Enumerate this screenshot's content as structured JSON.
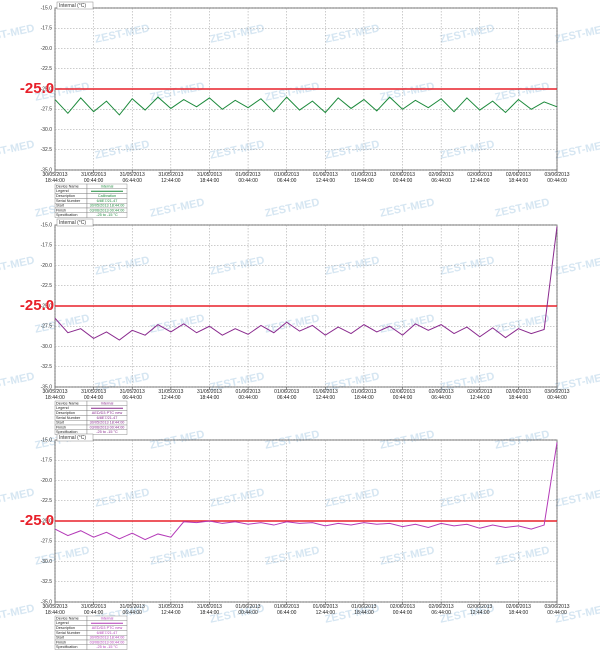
{
  "watermark": "ZEST-MED",
  "chart_data": [
    {
      "type": "line",
      "title": "Internal (°C)",
      "x": [
        0,
        2,
        4,
        6,
        8,
        10,
        12,
        14,
        16,
        18,
        20,
        22,
        24,
        26,
        28,
        30,
        32,
        34,
        36,
        38,
        40,
        42,
        44,
        46,
        48,
        50,
        52,
        54,
        56,
        58,
        60,
        62,
        64,
        66,
        68,
        70,
        72,
        74,
        76,
        78
      ],
      "xlim": [
        0,
        78
      ],
      "xticks": [
        {
          "value": 0,
          "label": "30/05/2013 18:44:00"
        },
        {
          "value": 6,
          "label": "31/05/2013 00:44:00"
        },
        {
          "value": 12,
          "label": "31/05/2013 06:44:00"
        },
        {
          "value": 18,
          "label": "31/05/2013 12:44:00"
        },
        {
          "value": 24,
          "label": "31/05/2013 18:44:00"
        },
        {
          "value": 30,
          "label": "01/06/2013 00:44:00"
        },
        {
          "value": 36,
          "label": "01/06/2013 06:44:00"
        },
        {
          "value": 42,
          "label": "01/06/2013 12:44:00"
        },
        {
          "value": 48,
          "label": "01/06/2013 18:44:00"
        },
        {
          "value": 54,
          "label": "02/06/2013 00:44:00"
        },
        {
          "value": 60,
          "label": "02/06/2013 06:44:00"
        },
        {
          "value": 66,
          "label": "02/06/2013 12:44:00"
        },
        {
          "value": 72,
          "label": "02/06/2013 18:44:00"
        },
        {
          "value": 78,
          "label": "03/06/2013 00:44:00"
        }
      ],
      "ylim": [
        -35,
        -15
      ],
      "yticks": [
        {
          "value": -35,
          "label": "-35.0"
        },
        {
          "value": -32.5,
          "label": "-32.5"
        },
        {
          "value": -30,
          "label": "-30.0"
        },
        {
          "value": -27.5,
          "label": "-27.5"
        },
        {
          "value": -25,
          "label": "-25.0"
        },
        {
          "value": -22.5,
          "label": "-22.5"
        },
        {
          "value": -20,
          "label": "-20.0"
        },
        {
          "value": -17.5,
          "label": "-17.5"
        },
        {
          "value": -15,
          "label": "-15.0"
        }
      ],
      "grid": true,
      "threshold": {
        "value": -25,
        "label": "-25.0",
        "color": "#e8202a"
      },
      "series": [
        {
          "name": "Internal",
          "color": "#1d8a3c",
          "values": [
            -26.3,
            -28.0,
            -26.1,
            -27.8,
            -26.5,
            -28.2,
            -26.2,
            -27.6,
            -26.0,
            -27.4,
            -26.3,
            -27.2,
            -26.1,
            -27.5,
            -26.4,
            -27.3,
            -26.2,
            -27.8,
            -26.0,
            -27.6,
            -26.5,
            -27.9,
            -26.1,
            -27.4,
            -26.3,
            -27.7,
            -26.0,
            -27.5,
            -26.4,
            -27.3,
            -26.2,
            -27.8,
            -26.1,
            -27.6,
            -26.5,
            -27.9,
            -26.3,
            -27.5,
            -26.6,
            -27.2
          ]
        }
      ],
      "info": [
        {
          "label": "Device Name",
          "value": "Internal"
        },
        {
          "label": "Legend"
        },
        {
          "label": "Description",
          "value": "Calibration"
        },
        {
          "label": "Serial Number",
          "value": "6/8E7/21-47"
        },
        {
          "label": "Start",
          "value": "30/05/2013 18:44:00"
        },
        {
          "label": "Finish",
          "value": "03/06/2013 00:44:00"
        },
        {
          "label": "Specification",
          "value": "-25 to -15 °C"
        }
      ]
    },
    {
      "type": "line",
      "title": "Internal (°C)",
      "x": [
        0,
        2,
        4,
        6,
        8,
        10,
        12,
        14,
        16,
        18,
        20,
        22,
        24,
        26,
        28,
        30,
        32,
        34,
        36,
        38,
        40,
        42,
        44,
        46,
        48,
        50,
        52,
        54,
        56,
        58,
        60,
        62,
        64,
        66,
        68,
        70,
        72,
        74,
        76,
        78
      ],
      "xlim": [
        0,
        78
      ],
      "xticks": [
        {
          "value": 0,
          "label": "30/05/2013 18:44:00"
        },
        {
          "value": 6,
          "label": "31/05/2013 00:44:00"
        },
        {
          "value": 12,
          "label": "31/05/2013 06:44:00"
        },
        {
          "value": 18,
          "label": "31/05/2013 12:44:00"
        },
        {
          "value": 24,
          "label": "31/05/2013 18:44:00"
        },
        {
          "value": 30,
          "label": "01/06/2013 00:44:00"
        },
        {
          "value": 36,
          "label": "01/06/2013 06:44:00"
        },
        {
          "value": 42,
          "label": "01/06/2013 12:44:00"
        },
        {
          "value": 48,
          "label": "01/06/2013 18:44:00"
        },
        {
          "value": 54,
          "label": "02/06/2013 00:44:00"
        },
        {
          "value": 60,
          "label": "02/06/2013 06:44:00"
        },
        {
          "value": 66,
          "label": "02/06/2013 12:44:00"
        },
        {
          "value": 72,
          "label": "02/06/2013 18:44:00"
        },
        {
          "value": 78,
          "label": "03/06/2013 00:44:00"
        }
      ],
      "ylim": [
        -35,
        -15
      ],
      "yticks": [
        {
          "value": -35,
          "label": "-35.0"
        },
        {
          "value": -32.5,
          "label": "-32.5"
        },
        {
          "value": -30,
          "label": "-30.0"
        },
        {
          "value": -27.5,
          "label": "-27.5"
        },
        {
          "value": -25,
          "label": "-25.0"
        },
        {
          "value": -22.5,
          "label": "-22.5"
        },
        {
          "value": -20,
          "label": "-20.0"
        },
        {
          "value": -17.5,
          "label": "-17.5"
        },
        {
          "value": -15,
          "label": "-15.0"
        }
      ],
      "grid": true,
      "threshold": {
        "value": -25,
        "label": "-25.0",
        "color": "#e8202a"
      },
      "series": [
        {
          "name": "Internal",
          "color": "#8a2a8e",
          "values": [
            -26.5,
            -28.3,
            -27.8,
            -29.0,
            -28.2,
            -29.2,
            -28.0,
            -28.6,
            -27.3,
            -28.2,
            -27.2,
            -28.3,
            -27.5,
            -28.6,
            -27.8,
            -28.5,
            -27.4,
            -28.3,
            -27.0,
            -28.1,
            -27.4,
            -28.6,
            -27.6,
            -28.4,
            -27.3,
            -28.2,
            -27.5,
            -28.6,
            -27.2,
            -28.0,
            -27.3,
            -28.4,
            -27.6,
            -28.8,
            -27.7,
            -28.9,
            -27.8,
            -28.4,
            -27.9,
            -15.2
          ]
        }
      ],
      "info": [
        {
          "label": "Device Name",
          "value": "Internal"
        },
        {
          "label": "Legend"
        },
        {
          "label": "Description",
          "value": "AED/D3 PTC new"
        },
        {
          "label": "Serial Number",
          "value": "6/8E7/21-47"
        },
        {
          "label": "Start",
          "value": "30/05/2013 18:44:00"
        },
        {
          "label": "Finish",
          "value": "03/06/2013 00:44:00"
        },
        {
          "label": "Specification",
          "value": "-25 to -15 °C"
        }
      ]
    },
    {
      "type": "line",
      "title": "Internal (°C)",
      "x": [
        0,
        2,
        4,
        6,
        8,
        10,
        12,
        14,
        16,
        18,
        20,
        22,
        24,
        26,
        28,
        30,
        32,
        34,
        36,
        38,
        40,
        42,
        44,
        46,
        48,
        50,
        52,
        54,
        56,
        58,
        60,
        62,
        64,
        66,
        68,
        70,
        72,
        74,
        76,
        78
      ],
      "xlim": [
        0,
        78
      ],
      "xticks": [
        {
          "value": 0,
          "label": "30/05/2013 18:44:00"
        },
        {
          "value": 6,
          "label": "31/05/2013 00:44:00"
        },
        {
          "value": 12,
          "label": "31/05/2013 06:44:00"
        },
        {
          "value": 18,
          "label": "31/05/2013 12:44:00"
        },
        {
          "value": 24,
          "label": "31/05/2013 18:44:00"
        },
        {
          "value": 30,
          "label": "01/06/2013 00:44:00"
        },
        {
          "value": 36,
          "label": "01/06/2013 06:44:00"
        },
        {
          "value": 42,
          "label": "01/06/2013 12:44:00"
        },
        {
          "value": 48,
          "label": "01/06/2013 18:44:00"
        },
        {
          "value": 54,
          "label": "02/06/2013 00:44:00"
        },
        {
          "value": 60,
          "label": "02/06/2013 06:44:00"
        },
        {
          "value": 66,
          "label": "02/06/2013 12:44:00"
        },
        {
          "value": 72,
          "label": "02/06/2013 18:44:00"
        },
        {
          "value": 78,
          "label": "03/06/2013 00:44:00"
        }
      ],
      "ylim": [
        -35,
        -15
      ],
      "yticks": [
        {
          "value": -35,
          "label": "-35.0"
        },
        {
          "value": -32.5,
          "label": "-32.5"
        },
        {
          "value": -30,
          "label": "-30.0"
        },
        {
          "value": -27.5,
          "label": "-27.5"
        },
        {
          "value": -25,
          "label": "-25.0"
        },
        {
          "value": -22.5,
          "label": "-22.5"
        },
        {
          "value": -20,
          "label": "-20.0"
        },
        {
          "value": -17.5,
          "label": "-17.5"
        },
        {
          "value": -15,
          "label": "-15.0"
        }
      ],
      "grid": true,
      "threshold": {
        "value": -25,
        "label": "-25.0",
        "color": "#e8202a"
      },
      "series": [
        {
          "name": "Internal",
          "color": "#b43ab8",
          "values": [
            -26.0,
            -26.8,
            -26.2,
            -27.0,
            -26.4,
            -27.2,
            -26.5,
            -27.3,
            -26.6,
            -27.0,
            -25.1,
            -25.2,
            -25.0,
            -25.3,
            -25.1,
            -25.4,
            -25.2,
            -25.5,
            -25.1,
            -25.3,
            -25.2,
            -25.6,
            -25.3,
            -25.5,
            -25.2,
            -25.4,
            -25.3,
            -25.7,
            -25.4,
            -25.8,
            -25.3,
            -25.6,
            -25.4,
            -25.9,
            -25.5,
            -25.8,
            -25.6,
            -26.0,
            -25.5,
            -15.3
          ]
        }
      ],
      "info": [
        {
          "label": "Device Name",
          "value": "Internal"
        },
        {
          "label": "Legend"
        },
        {
          "label": "Description",
          "value": "AED/D3 PTC new"
        },
        {
          "label": "Serial Number",
          "value": "6/8E7/21-47"
        },
        {
          "label": "Start",
          "value": "30/05/2013 18:44:00"
        },
        {
          "label": "Finish",
          "value": "03/06/2013 00:44:00"
        },
        {
          "label": "Specification",
          "value": "-25 to -15 °C"
        }
      ]
    }
  ]
}
